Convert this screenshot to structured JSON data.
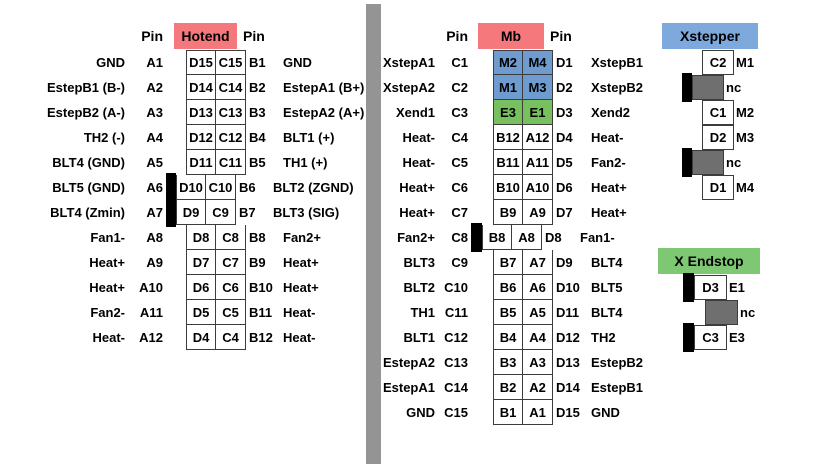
{
  "colors": {
    "header_red": "#F4787C",
    "header_blue": "#7EA9DC",
    "header_green": "#7FC873",
    "cell_blue": "#6E9CD0",
    "cell_green": "#76C15D",
    "cell_gray": "#6F6F6F",
    "marker_black": "#000000",
    "divider_gray": "#949494",
    "border": "#3C3C3C"
  },
  "hotend": {
    "header": {
      "pin_left": "Pin",
      "title": "Hotend",
      "pin_right": "Pin"
    },
    "rows": [
      {
        "left": "GND",
        "pinA": "A1",
        "d": "D15",
        "c": "C15",
        "pinB": "B1",
        "right": "GND"
      },
      {
        "left": "EstepB1 (B-)",
        "pinA": "A2",
        "d": "D14",
        "c": "C14",
        "pinB": "B2",
        "right": "EstepA1 (B+)"
      },
      {
        "left": "EstepB2 (A-)",
        "pinA": "A3",
        "d": "D13",
        "c": "C13",
        "pinB": "B3",
        "right": "EstepA2 (A+)"
      },
      {
        "left": "TH2 (-)",
        "pinA": "A4",
        "d": "D12",
        "c": "C12",
        "pinB": "B4",
        "right": "BLT1 (+)"
      },
      {
        "left": "BLT4 (GND)",
        "pinA": "A5",
        "d": "D11",
        "c": "C11",
        "pinB": "B5",
        "right": "TH1 (+)"
      },
      {
        "left": "BLT5 (GND)",
        "pinA": "A6",
        "d": "D10",
        "c": "C10",
        "pinB": "B6",
        "right": "BLT2 (ZGND)",
        "marker": true
      },
      {
        "left": "BLT4 (Zmin)",
        "pinA": "A7",
        "d": "D9",
        "c": "C9",
        "pinB": "B7",
        "right": "BLT3 (SIG)",
        "marker": true
      },
      {
        "left": "Fan1-",
        "pinA": "A8",
        "d": "D8",
        "c": "C8",
        "pinB": "B8",
        "right": "Fan2+"
      },
      {
        "left": "Heat+",
        "pinA": "A9",
        "d": "D7",
        "c": "C7",
        "pinB": "B9",
        "right": "Heat+"
      },
      {
        "left": "Heat+",
        "pinA": "A10",
        "d": "D6",
        "c": "C6",
        "pinB": "B10",
        "right": "Heat+"
      },
      {
        "left": "Fan2-",
        "pinA": "A11",
        "d": "D5",
        "c": "C5",
        "pinB": "B11",
        "right": "Heat-"
      },
      {
        "left": "Heat-",
        "pinA": "A12",
        "d": "D4",
        "c": "C4",
        "pinB": "B12",
        "right": "Heat-"
      }
    ]
  },
  "mb": {
    "header": {
      "pin_left": "Pin",
      "title": "Mb",
      "pin_right": "Pin"
    },
    "rows": [
      {
        "left": "XstepA1",
        "pinC": "C1",
        "cell1": "M2",
        "cell2": "M4",
        "pinD": "D1",
        "right": "XstepB1",
        "color": "blue"
      },
      {
        "left": "XstepA2",
        "pinC": "C2",
        "cell1": "M1",
        "cell2": "M3",
        "pinD": "D2",
        "right": "XstepB2",
        "color": "blue"
      },
      {
        "left": "Xend1",
        "pinC": "C3",
        "cell1": "E3",
        "cell2": "E1",
        "pinD": "D3",
        "right": "Xend2",
        "color": "green"
      },
      {
        "left": "Heat-",
        "pinC": "C4",
        "cell1": "B12",
        "cell2": "A12",
        "pinD": "D4",
        "right": "Heat-"
      },
      {
        "left": "Heat-",
        "pinC": "C5",
        "cell1": "B11",
        "cell2": "A11",
        "pinD": "D5",
        "right": "Fan2-"
      },
      {
        "left": "Heat+",
        "pinC": "C6",
        "cell1": "B10",
        "cell2": "A10",
        "pinD": "D6",
        "right": "Heat+"
      },
      {
        "left": "Heat+",
        "pinC": "C7",
        "cell1": "B9",
        "cell2": "A9",
        "pinD": "D7",
        "right": "Heat+"
      },
      {
        "left": "Fan2+",
        "pinC": "C8",
        "cell1": "B8",
        "cell2": "A8",
        "pinD": "D8",
        "right": "Fan1-",
        "marker": true
      },
      {
        "left": "BLT3",
        "pinC": "C9",
        "cell1": "B7",
        "cell2": "A7",
        "pinD": "D9",
        "right": "BLT4"
      },
      {
        "left": "BLT2",
        "pinC": "C10",
        "cell1": "B6",
        "cell2": "A6",
        "pinD": "D10",
        "right": "BLT5"
      },
      {
        "left": "TH1",
        "pinC": "C11",
        "cell1": "B5",
        "cell2": "A5",
        "pinD": "D11",
        "right": "BLT4"
      },
      {
        "left": "BLT1",
        "pinC": "C12",
        "cell1": "B4",
        "cell2": "A4",
        "pinD": "D12",
        "right": "TH2"
      },
      {
        "left": "EstepA2",
        "pinC": "C13",
        "cell1": "B3",
        "cell2": "A3",
        "pinD": "D13",
        "right": "EstepB2"
      },
      {
        "left": "EstepA1",
        "pinC": "C14",
        "cell1": "B2",
        "cell2": "A2",
        "pinD": "D14",
        "right": "EstepB1"
      },
      {
        "left": "GND",
        "pinC": "C15",
        "cell1": "B1",
        "cell2": "A1",
        "pinD": "D15",
        "right": "GND"
      }
    ]
  },
  "xstepper": {
    "title": "Xstepper",
    "rows": [
      {
        "cell": "C2",
        "label": "M1"
      },
      {
        "cell": "",
        "label": "nc",
        "gray": true,
        "marker": true
      },
      {
        "cell": "C1",
        "label": "M2"
      },
      {
        "cell": "D2",
        "label": "M3"
      },
      {
        "cell": "",
        "label": "nc",
        "gray": true,
        "marker": true
      },
      {
        "cell": "D1",
        "label": "M4"
      }
    ]
  },
  "xendstop": {
    "title": "X Endstop",
    "rows": [
      {
        "cell": "D3",
        "label": "E1",
        "marker": true
      },
      {
        "cell": "",
        "label": "nc",
        "gray": true
      },
      {
        "cell": "C3",
        "label": "E3",
        "marker": true
      }
    ]
  }
}
